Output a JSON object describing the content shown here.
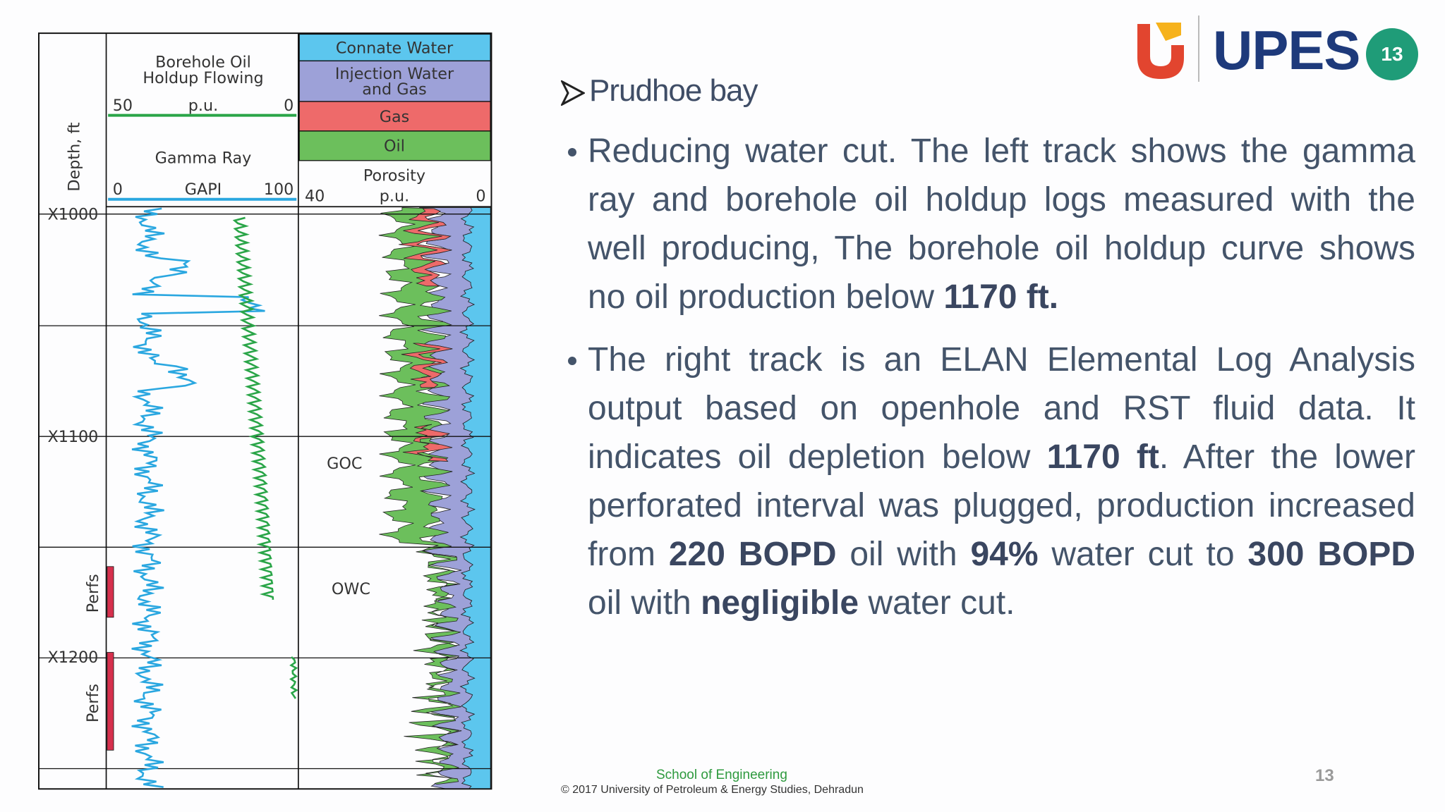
{
  "logo": {
    "text": "UPES",
    "badge": "13"
  },
  "heading": "Prudhoe bay",
  "bullets": [
    {
      "runs": [
        {
          "text": "Reducing water cut. The left track shows the gamma ray and borehole oil holdup logs measured with the well producing, The borehole oil holdup curve shows no oil production below "
        },
        {
          "text": "1170 ft.",
          "bold": true
        }
      ]
    },
    {
      "runs": [
        {
          "text": "The right track is an ELAN Elemental Log Analysis output based on openhole and RST fluid data. It indicates oil depletion below "
        },
        {
          "text": "1170 ft",
          "bold": true
        },
        {
          "text": ". After the lower perforated interval was plugged, production increased from  "
        },
        {
          "text": "220 BOPD",
          "bold": true
        },
        {
          "text": " oil with "
        },
        {
          "text": "94%",
          "bold": true
        },
        {
          "text": " water cut to "
        },
        {
          "text": "300 BOPD",
          "bold": true
        },
        {
          "text": " oil with "
        },
        {
          "text": "negligible",
          "bold": true
        },
        {
          "text": " water cut."
        }
      ]
    }
  ],
  "figure": {
    "depth_label": "Depth, ft",
    "depth_ticks": [
      "X1000",
      "X1100",
      "X1200"
    ],
    "holdup_title": [
      "Borehole Oil",
      "Holdup Flowing"
    ],
    "holdup_scale": [
      "50",
      "p.u.",
      "0"
    ],
    "gr_title": "Gamma Ray",
    "gr_scale": [
      "0",
      "GAPI",
      "100"
    ],
    "legend": [
      {
        "lines": [
          "Connate Water"
        ],
        "color": "#5cc6ee"
      },
      {
        "lines": [
          "Injection Water",
          "and Gas"
        ],
        "color": "#9da1d8"
      },
      {
        "lines": [
          "Gas"
        ],
        "color": "#ee6a6a"
      },
      {
        "lines": [
          "Oil"
        ],
        "color": "#6cbf5c"
      }
    ],
    "porosity_title": "Porosity",
    "porosity_scale": [
      "40",
      "p.u.",
      "0"
    ],
    "contacts": [
      "GOC",
      "OWC"
    ],
    "perfs": [
      "Perfs",
      "Perfs"
    ]
  },
  "footer": {
    "school": "School of Engineering",
    "copyright": "© 2017 University of Petroleum & Energy Studies, Dehradun",
    "page_number": "13"
  }
}
